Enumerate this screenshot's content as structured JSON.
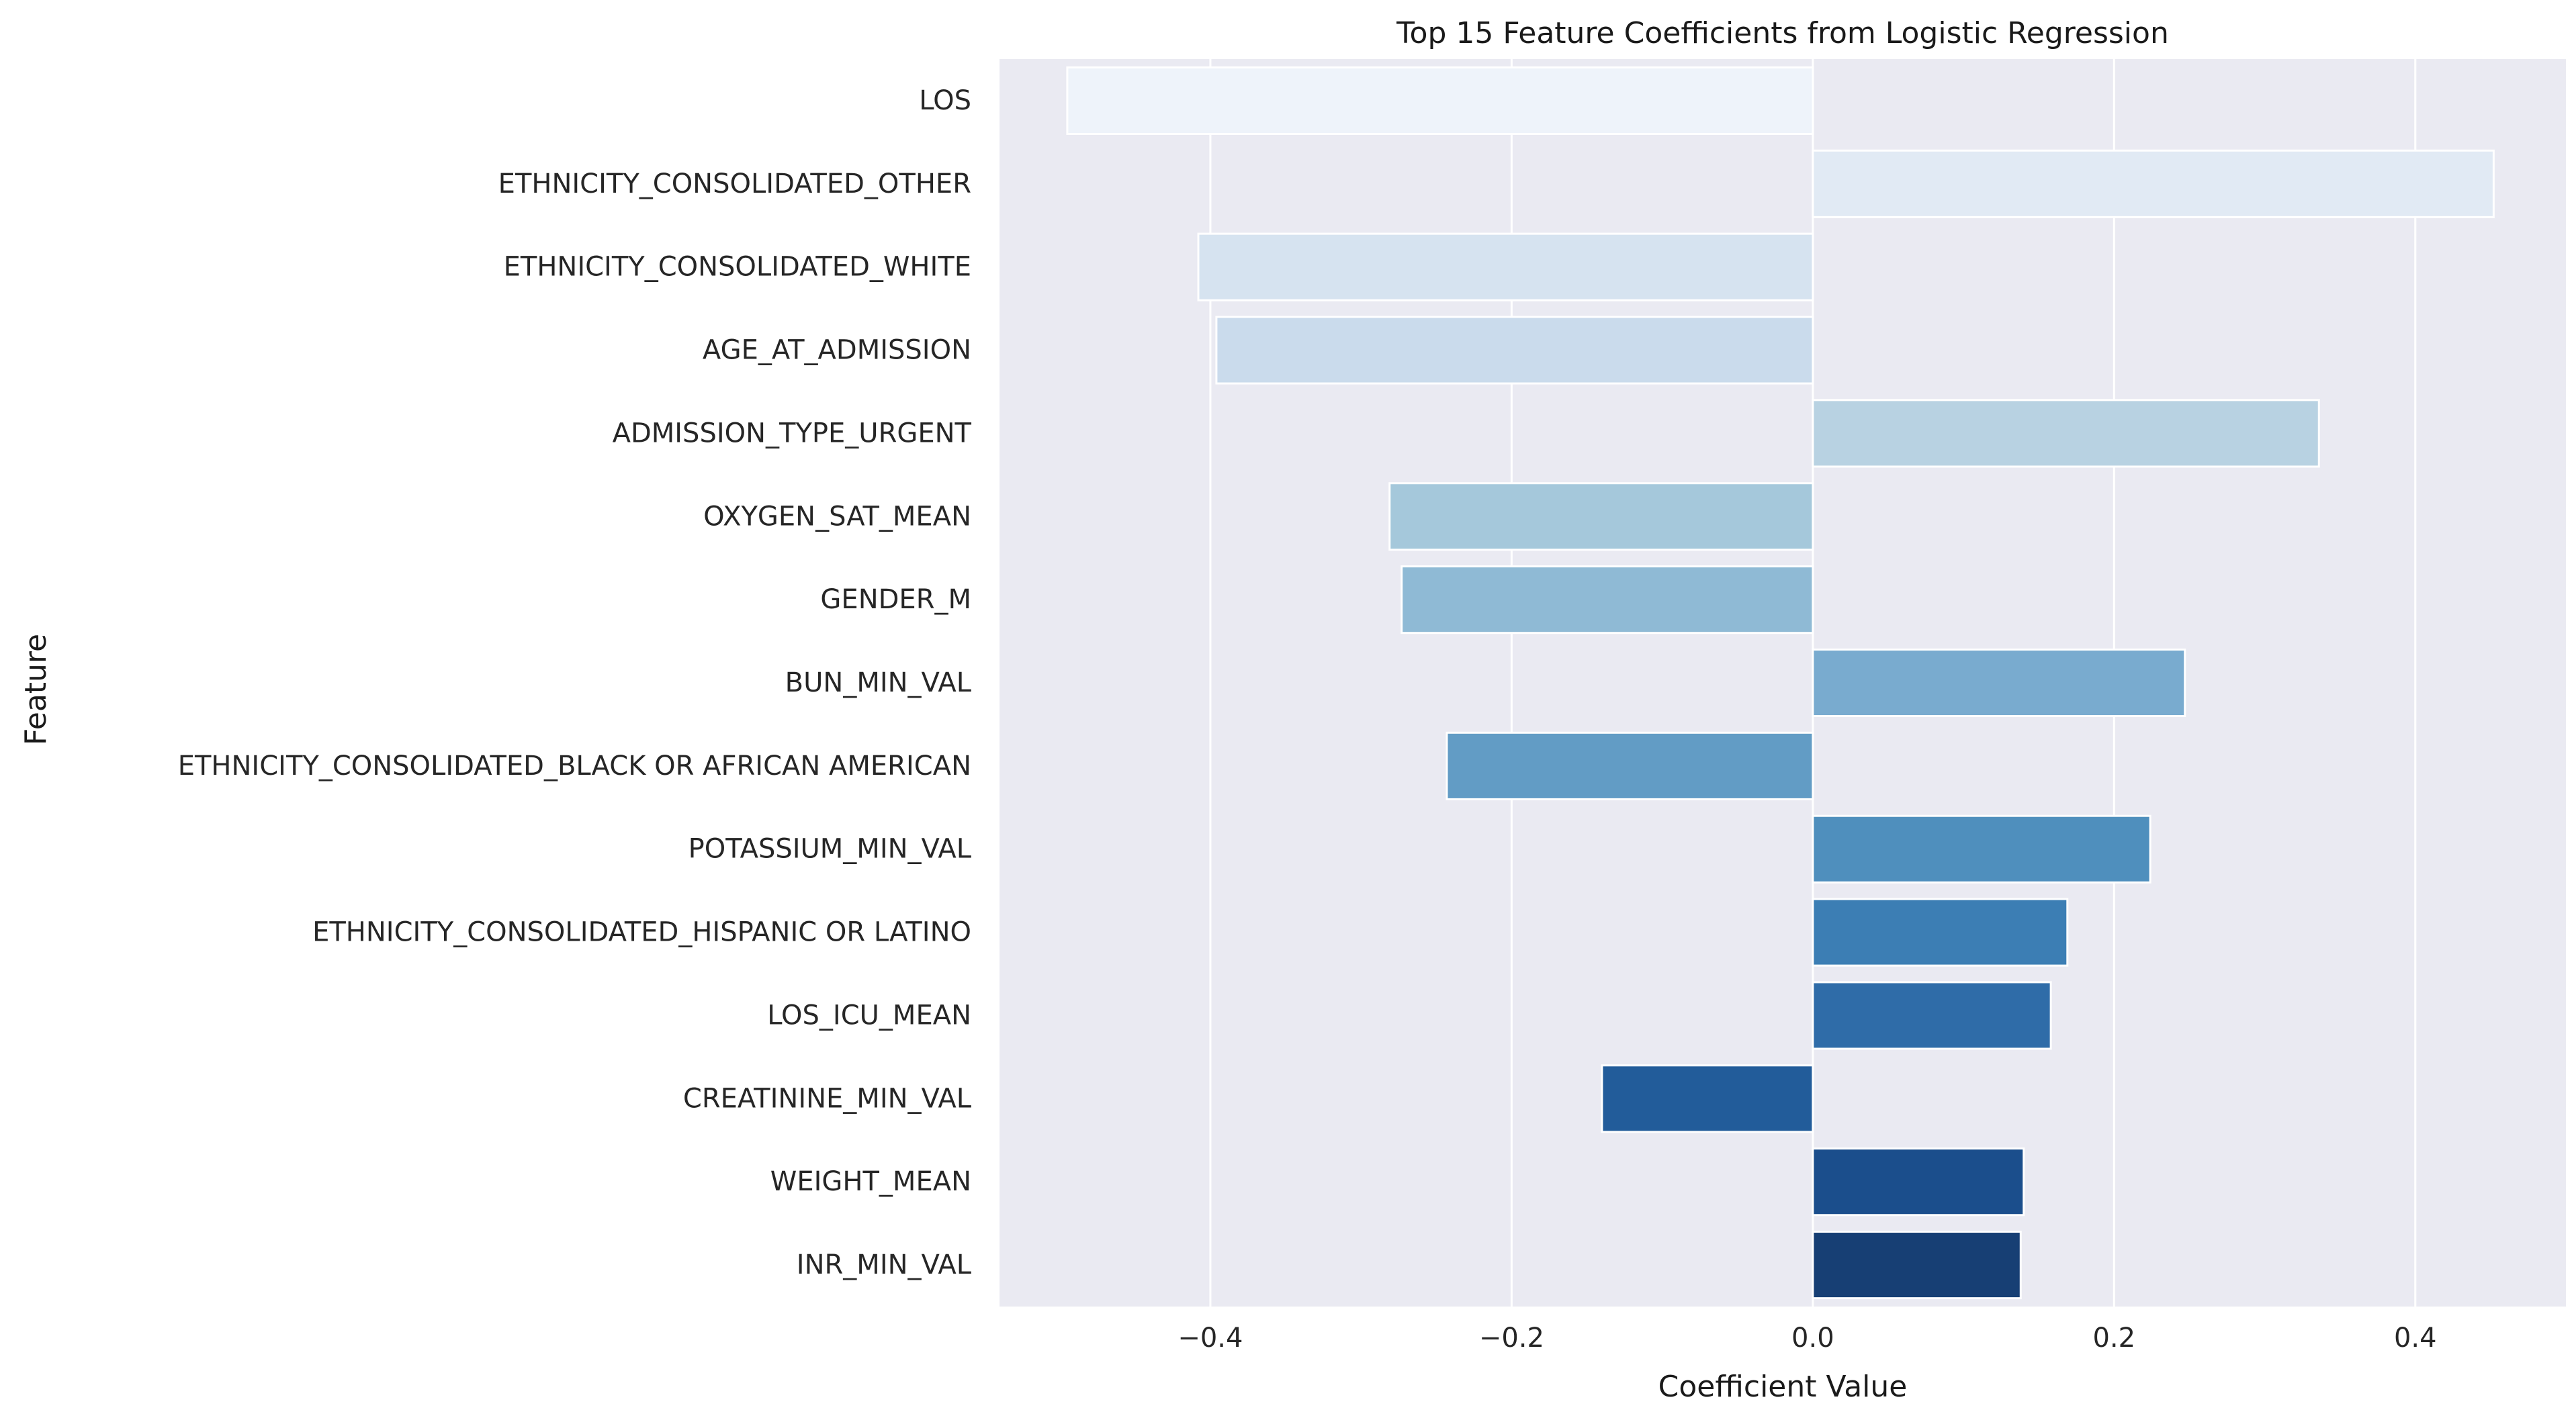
{
  "chart_data": {
    "type": "bar",
    "orientation": "horizontal",
    "title": "Top 15 Feature Coefficients from Logistic Regression",
    "xlabel": "Coefficient Value",
    "ylabel": "Feature",
    "categories": [
      "LOS",
      "ETHNICITY_CONSOLIDATED_OTHER",
      "ETHNICITY_CONSOLIDATED_WHITE",
      "AGE_AT_ADMISSION",
      "ADMISSION_TYPE_URGENT",
      "OXYGEN_SAT_MEAN",
      "GENDER_M",
      "BUN_MIN_VAL",
      "ETHNICITY_CONSOLIDATED_BLACK OR AFRICAN AMERICAN",
      "POTASSIUM_MIN_VAL",
      "ETHNICITY_CONSOLIDATED_HISPANIC OR LATINO",
      "LOS_ICU_MEAN",
      "CREATININE_MIN_VAL",
      "WEIGHT_MEAN",
      "INR_MIN_VAL"
    ],
    "values": [
      -0.495,
      0.452,
      -0.408,
      -0.396,
      0.336,
      -0.281,
      -0.273,
      0.247,
      -0.243,
      0.224,
      0.169,
      0.158,
      -0.14,
      0.14,
      0.138
    ],
    "colors": [
      "#eef3fa",
      "#e1eaf4",
      "#d6e3f0",
      "#cadbec",
      "#b8d2e2",
      "#a5c8db",
      "#8fbad5",
      "#79abcf",
      "#629cc5",
      "#4f8fbd",
      "#3c7eb4",
      "#2f6ca8",
      "#225c9a",
      "#1b4e8c",
      "#173f74"
    ],
    "xlim": [
      -0.54,
      0.5
    ],
    "xticks": [
      -0.4,
      -0.2,
      0.0,
      0.2,
      0.4
    ],
    "xtick_labels": [
      "−0.4",
      "−0.2",
      "0.0",
      "0.2",
      "0.4"
    ],
    "grid": true,
    "background_color": "#eaeaf2",
    "grid_color": "#ffffff"
  }
}
